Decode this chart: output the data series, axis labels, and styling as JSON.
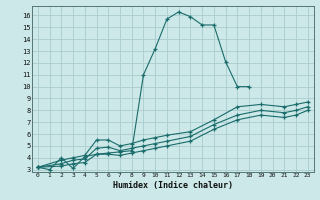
{
  "xlabel": "Humidex (Indice chaleur)",
  "bg_color": "#cce8e8",
  "grid_color": "#aacccc",
  "line_color": "#1a6b6b",
  "xlim": [
    -0.5,
    23.5
  ],
  "ylim": [
    2.8,
    16.8
  ],
  "xticks": [
    0,
    1,
    2,
    3,
    4,
    5,
    6,
    7,
    8,
    9,
    10,
    11,
    12,
    13,
    14,
    15,
    16,
    17,
    18,
    19,
    20,
    21,
    22,
    23
  ],
  "yticks": [
    3,
    4,
    5,
    6,
    7,
    8,
    9,
    10,
    11,
    12,
    13,
    14,
    15,
    16
  ],
  "series1_x": [
    0,
    1,
    2,
    3,
    4,
    5,
    6,
    7,
    8,
    9,
    10,
    11,
    12,
    13,
    14,
    15,
    16,
    17,
    18
  ],
  "series1_y": [
    3.2,
    3.0,
    4.0,
    3.1,
    4.1,
    4.3,
    4.4,
    4.5,
    4.6,
    11.0,
    13.2,
    15.7,
    16.3,
    15.9,
    15.2,
    15.2,
    12.1,
    10.0,
    10.0
  ],
  "series2_x": [
    0,
    2,
    3,
    4,
    5,
    6,
    7,
    8,
    9,
    10,
    11,
    13,
    15,
    17,
    19,
    21,
    22,
    23
  ],
  "series2_y": [
    3.2,
    3.8,
    4.0,
    4.2,
    5.5,
    5.5,
    5.0,
    5.2,
    5.5,
    5.7,
    5.9,
    6.2,
    7.2,
    8.3,
    8.5,
    8.3,
    8.5,
    8.7
  ],
  "series3_x": [
    0,
    2,
    3,
    4,
    5,
    6,
    7,
    8,
    9,
    10,
    11,
    13,
    15,
    17,
    19,
    21,
    22,
    23
  ],
  "series3_y": [
    3.2,
    3.5,
    3.8,
    3.9,
    4.8,
    4.9,
    4.6,
    4.8,
    5.0,
    5.2,
    5.4,
    5.8,
    6.8,
    7.6,
    8.0,
    7.8,
    8.0,
    8.3
  ],
  "series4_x": [
    0,
    2,
    3,
    4,
    5,
    6,
    7,
    8,
    9,
    10,
    11,
    13,
    15,
    17,
    19,
    21,
    22,
    23
  ],
  "series4_y": [
    3.2,
    3.3,
    3.5,
    3.6,
    4.3,
    4.3,
    4.2,
    4.4,
    4.6,
    4.8,
    5.0,
    5.4,
    6.4,
    7.2,
    7.6,
    7.4,
    7.6,
    8.0
  ]
}
